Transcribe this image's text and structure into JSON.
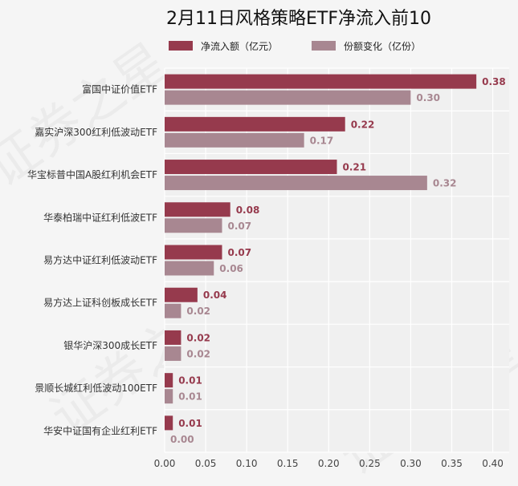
{
  "watermark": "证券之星",
  "chart_data": {
    "type": "bar",
    "orientation": "horizontal",
    "title": "2月11日风格策略ETF净流入前10",
    "xlabel": "",
    "ylabel": "",
    "xlim": [
      0,
      0.42
    ],
    "xticks": [
      "0.00",
      "0.05",
      "0.10",
      "0.15",
      "0.20",
      "0.25",
      "0.30",
      "0.35",
      "0.40"
    ],
    "grid": true,
    "legend_position": "top",
    "categories": [
      "富国中证价值ETF",
      "嘉实沪深300红利低波动ETF",
      "华宝标普中国A股红利机会ETF",
      "华泰柏瑞中证红利低波ETF",
      "易方达中证红利低波动ETF",
      "易方达上证科创板成长ETF",
      "银华沪深300成长ETF",
      "景顺长城红利低波动100ETF",
      "华安中证国有企业红利ETF"
    ],
    "series": [
      {
        "name": "净流入额（亿元）",
        "color": "#963a4d",
        "values": [
          0.38,
          0.22,
          0.21,
          0.08,
          0.07,
          0.04,
          0.02,
          0.01,
          0.01
        ],
        "labels": [
          "0.38",
          "0.22",
          "0.21",
          "0.08",
          "0.07",
          "0.04",
          "0.02",
          "0.01",
          "0.01"
        ]
      },
      {
        "name": "份额变化（亿份）",
        "color": "#a88791",
        "values": [
          0.3,
          0.17,
          0.32,
          0.07,
          0.06,
          0.02,
          0.02,
          0.01,
          0.0
        ],
        "labels": [
          "0.30",
          "0.17",
          "0.32",
          "0.07",
          "0.06",
          "0.02",
          "0.02",
          "0.01",
          "0.00"
        ]
      }
    ]
  }
}
